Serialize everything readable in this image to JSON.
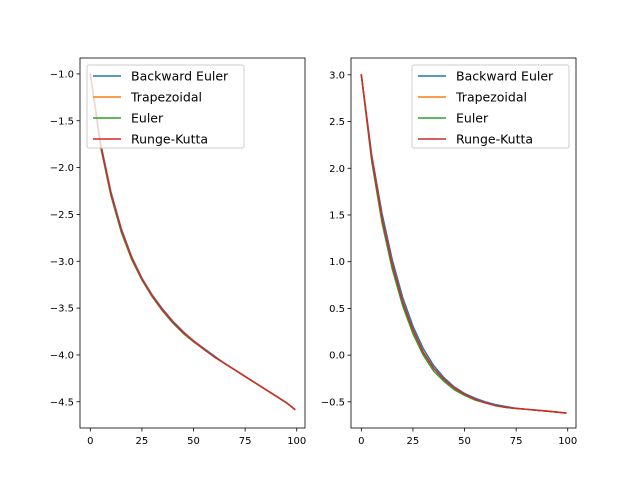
{
  "chart_data": [
    {
      "type": "line",
      "xlim": [
        -5,
        104
      ],
      "ylim": [
        -4.78,
        -0.83
      ],
      "xticks": [
        0,
        25,
        50,
        75,
        100
      ],
      "yticks": [
        -1.0,
        -1.5,
        -2.0,
        -2.5,
        -3.0,
        -3.5,
        -4.0,
        -4.5
      ],
      "ytick_labels": [
        "−1.0",
        "−1.5",
        "−2.0",
        "−2.5",
        "−3.0",
        "−3.5",
        "−4.0",
        "−4.5"
      ],
      "legend": "top-left",
      "series": [
        {
          "name": "Backward Euler",
          "color": "#1f77b4",
          "x": [
            0,
            5,
            10,
            15,
            20,
            25,
            30,
            35,
            40,
            45,
            50,
            55,
            60,
            65,
            70,
            75,
            80,
            85,
            90,
            95,
            99
          ],
          "y": [
            -1.0,
            -1.74,
            -2.26,
            -2.65,
            -2.95,
            -3.18,
            -3.36,
            -3.51,
            -3.64,
            -3.75,
            -3.85,
            -3.93,
            -4.01,
            -4.09,
            -4.16,
            -4.23,
            -4.3,
            -4.37,
            -4.44,
            -4.51,
            -4.58
          ]
        },
        {
          "name": "Trapezoidal",
          "color": "#ff7f0e",
          "x": [
            0,
            5,
            10,
            15,
            20,
            25,
            30,
            35,
            40,
            45,
            50,
            55,
            60,
            65,
            70,
            75,
            80,
            85,
            90,
            95,
            99
          ],
          "y": [
            -1.0,
            -1.76,
            -2.28,
            -2.67,
            -2.96,
            -3.19,
            -3.37,
            -3.52,
            -3.65,
            -3.76,
            -3.85,
            -3.94,
            -4.02,
            -4.09,
            -4.16,
            -4.23,
            -4.3,
            -4.37,
            -4.44,
            -4.51,
            -4.58
          ]
        },
        {
          "name": "Euler",
          "color": "#2ca02c",
          "x": [
            0,
            5,
            10,
            15,
            20,
            25,
            30,
            35,
            40,
            45,
            50,
            55,
            60,
            65,
            70,
            75,
            80,
            85,
            90,
            95,
            99
          ],
          "y": [
            -1.0,
            -1.78,
            -2.3,
            -2.69,
            -2.98,
            -3.2,
            -3.38,
            -3.53,
            -3.66,
            -3.77,
            -3.86,
            -3.94,
            -4.02,
            -4.09,
            -4.16,
            -4.23,
            -4.3,
            -4.37,
            -4.44,
            -4.51,
            -4.58
          ]
        },
        {
          "name": "Runge-Kutta",
          "color": "#d62728",
          "x": [
            0,
            5,
            10,
            15,
            20,
            25,
            30,
            35,
            40,
            45,
            50,
            55,
            60,
            65,
            70,
            75,
            80,
            85,
            90,
            95,
            99
          ],
          "y": [
            -1.0,
            -1.76,
            -2.28,
            -2.67,
            -2.96,
            -3.19,
            -3.37,
            -3.52,
            -3.65,
            -3.76,
            -3.85,
            -3.94,
            -4.02,
            -4.09,
            -4.16,
            -4.23,
            -4.3,
            -4.37,
            -4.44,
            -4.51,
            -4.58
          ]
        }
      ]
    },
    {
      "type": "line",
      "xlim": [
        -5,
        104
      ],
      "ylim": [
        -0.78,
        3.18
      ],
      "xticks": [
        0,
        25,
        50,
        75,
        100
      ],
      "yticks": [
        3.0,
        2.5,
        2.0,
        1.5,
        1.0,
        0.5,
        0.0,
        -0.5
      ],
      "ytick_labels": [
        "3.0",
        "2.5",
        "2.0",
        "1.5",
        "1.0",
        "0.5",
        "0.0",
        "−0.5"
      ],
      "legend": "top-right",
      "series": [
        {
          "name": "Backward Euler",
          "color": "#1f77b4",
          "x": [
            0,
            5,
            10,
            15,
            20,
            25,
            30,
            35,
            40,
            45,
            50,
            55,
            60,
            65,
            70,
            75,
            80,
            85,
            90,
            95,
            99
          ],
          "y": [
            3.0,
            2.15,
            1.52,
            1.02,
            0.62,
            0.31,
            0.07,
            -0.11,
            -0.24,
            -0.34,
            -0.41,
            -0.46,
            -0.5,
            -0.53,
            -0.55,
            -0.57,
            -0.58,
            -0.59,
            -0.6,
            -0.61,
            -0.62
          ]
        },
        {
          "name": "Trapezoidal",
          "color": "#ff7f0e",
          "x": [
            0,
            5,
            10,
            15,
            20,
            25,
            30,
            35,
            40,
            45,
            50,
            55,
            60,
            65,
            70,
            75,
            80,
            85,
            90,
            95,
            99
          ],
          "y": [
            3.0,
            2.12,
            1.47,
            0.97,
            0.57,
            0.27,
            0.03,
            -0.14,
            -0.26,
            -0.35,
            -0.42,
            -0.47,
            -0.51,
            -0.54,
            -0.56,
            -0.57,
            -0.58,
            -0.59,
            -0.6,
            -0.61,
            -0.62
          ]
        },
        {
          "name": "Euler",
          "color": "#2ca02c",
          "x": [
            0,
            5,
            10,
            15,
            20,
            25,
            30,
            35,
            40,
            45,
            50,
            55,
            60,
            65,
            70,
            75,
            80,
            85,
            90,
            95,
            99
          ],
          "y": [
            3.0,
            2.08,
            1.42,
            0.92,
            0.53,
            0.23,
            0.0,
            -0.17,
            -0.28,
            -0.37,
            -0.43,
            -0.48,
            -0.51,
            -0.54,
            -0.56,
            -0.57,
            -0.58,
            -0.59,
            -0.6,
            -0.61,
            -0.62
          ]
        },
        {
          "name": "Runge-Kutta",
          "color": "#d62728",
          "x": [
            0,
            5,
            10,
            15,
            20,
            25,
            30,
            35,
            40,
            45,
            50,
            55,
            60,
            65,
            70,
            75,
            80,
            85,
            90,
            95,
            99
          ],
          "y": [
            3.0,
            2.12,
            1.47,
            0.97,
            0.57,
            0.27,
            0.03,
            -0.14,
            -0.26,
            -0.35,
            -0.42,
            -0.47,
            -0.51,
            -0.54,
            -0.56,
            -0.57,
            -0.58,
            -0.59,
            -0.6,
            -0.61,
            -0.62
          ]
        }
      ]
    }
  ]
}
